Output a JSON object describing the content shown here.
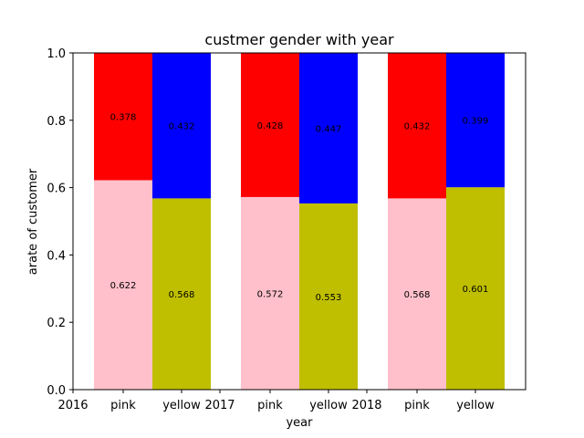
{
  "chart_data": {
    "type": "bar",
    "stacked": true,
    "title": "custmer gender with year",
    "xlabel": "year",
    "ylabel": "arate of customer",
    "ylim": [
      0,
      1.0
    ],
    "y_ticks": [
      "0.0",
      "0.2",
      "0.4",
      "0.6",
      "0.8",
      "1.0"
    ],
    "x_tick_labels": [
      "2016",
      "pink",
      "yellow",
      "2017",
      "pink",
      "yellow",
      "2018",
      "pink",
      "yellow"
    ],
    "grid": false,
    "groups": [
      {
        "year": "2016",
        "bars": [
          {
            "label": "pink",
            "bottom_value": 0.622,
            "top_value": 0.378,
            "bottom_color": "#ffc0cb",
            "top_color": "#ff0000"
          },
          {
            "label": "yellow",
            "bottom_value": 0.568,
            "top_value": 0.432,
            "bottom_color": "#bfbf00",
            "top_color": "#0000ff"
          }
        ]
      },
      {
        "year": "2017",
        "bars": [
          {
            "label": "pink",
            "bottom_value": 0.572,
            "top_value": 0.428,
            "bottom_color": "#ffc0cb",
            "top_color": "#ff0000"
          },
          {
            "label": "yellow",
            "bottom_value": 0.553,
            "top_value": 0.447,
            "bottom_color": "#bfbf00",
            "top_color": "#0000ff"
          }
        ]
      },
      {
        "year": "2018",
        "bars": [
          {
            "label": "pink",
            "bottom_value": 0.568,
            "top_value": 0.432,
            "bottom_color": "#ffc0cb",
            "top_color": "#ff0000"
          },
          {
            "label": "yellow",
            "bottom_value": 0.601,
            "top_value": 0.399,
            "bottom_color": "#bfbf00",
            "top_color": "#0000ff"
          }
        ]
      }
    ]
  }
}
